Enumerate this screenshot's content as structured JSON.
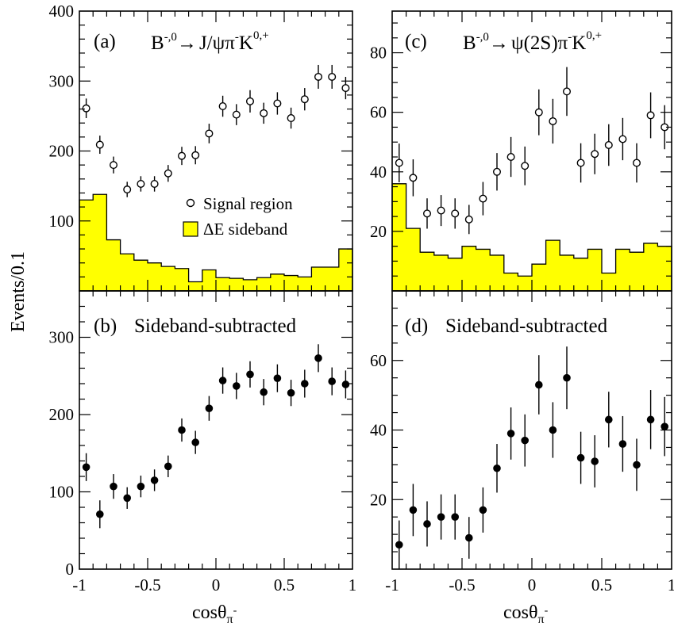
{
  "figure": {
    "ylabel": "Events/0.1",
    "xlabel_left": "cosθ",
    "xlabel_right": "cosθ",
    "xlabel_sub": "π",
    "xlabel_sup": "-"
  },
  "legend": {
    "signal_label": "Signal region",
    "sideband_label": "ΔE sideband"
  },
  "colors": {
    "sideband_fill": "#ffff00",
    "marker": "#000000"
  },
  "chart_data": [
    {
      "id": "a",
      "type": "scatter",
      "label_letter": "(a)",
      "title_parts": {
        "b": "B",
        "b_sup": "-,0",
        "arrow": "→",
        "decay": "J/ψπ",
        "pi_sup": "-",
        "k": "K",
        "k_sup": "0,+"
      },
      "xlim": [
        -1,
        1
      ],
      "ylim": [
        0,
        400
      ],
      "yticks": [
        100,
        200,
        300,
        400
      ],
      "yticklabels": [
        "100",
        "200",
        "300",
        "400"
      ],
      "xticks": [
        -1,
        -0.5,
        0,
        0.5,
        1
      ],
      "series": [
        {
          "name": "Signal region",
          "marker": "open-circle",
          "x": [
            -0.95,
            -0.85,
            -0.75,
            -0.65,
            -0.55,
            -0.45,
            -0.35,
            -0.25,
            -0.15,
            -0.05,
            0.05,
            0.15,
            0.25,
            0.35,
            0.45,
            0.55,
            0.65,
            0.75,
            0.85,
            0.95
          ],
          "y": [
            261,
            209,
            180,
            145,
            153,
            153,
            168,
            193,
            194,
            225,
            264,
            252,
            271,
            254,
            268,
            247,
            274,
            306,
            306,
            290
          ],
          "err": [
            14,
            13,
            12,
            11,
            11,
            11,
            12,
            13,
            13,
            14,
            15,
            15,
            16,
            15,
            16,
            15,
            16,
            17,
            17,
            16
          ]
        },
        {
          "name": "ΔE sideband",
          "type": "histogram",
          "bin_edges": [
            -1,
            -0.9,
            -0.8,
            -0.7,
            -0.6,
            -0.5,
            -0.4,
            -0.3,
            -0.2,
            -0.1,
            0,
            0.1,
            0.2,
            0.3,
            0.4,
            0.5,
            0.6,
            0.7,
            0.8,
            0.9,
            1
          ],
          "values": [
            130,
            138,
            73,
            53,
            44,
            40,
            35,
            32,
            13,
            30,
            19,
            18,
            16,
            19,
            24,
            22,
            20,
            34,
            34,
            60
          ]
        }
      ]
    },
    {
      "id": "b",
      "type": "scatter",
      "label_letter": "(b)",
      "title": "Sideband-subtracted",
      "xlim": [
        -1,
        1
      ],
      "ylim": [
        0,
        360
      ],
      "yticks": [
        0,
        100,
        200,
        300
      ],
      "yticklabels": [
        "0",
        "100",
        "200",
        "300"
      ],
      "xticks": [
        -1,
        -0.5,
        0,
        0.5,
        1
      ],
      "xticklabels": [
        "-1",
        "-0.5",
        "0",
        "0.5",
        "1"
      ],
      "series": [
        {
          "marker": "filled-circle",
          "x": [
            -0.95,
            -0.85,
            -0.75,
            -0.65,
            -0.55,
            -0.45,
            -0.35,
            -0.25,
            -0.15,
            -0.05,
            0.05,
            0.15,
            0.25,
            0.35,
            0.45,
            0.55,
            0.65,
            0.75,
            0.85,
            0.95
          ],
          "y": [
            132,
            71,
            107,
            92,
            107,
            115,
            133,
            180,
            164,
            208,
            244,
            237,
            252,
            229,
            247,
            228,
            240,
            273,
            243,
            239
          ],
          "err": [
            18,
            18,
            16,
            14,
            14,
            14,
            14,
            15,
            15,
            16,
            17,
            17,
            17,
            17,
            18,
            17,
            18,
            18,
            18,
            18
          ]
        }
      ]
    },
    {
      "id": "c",
      "type": "scatter",
      "label_letter": "(c)",
      "title_parts": {
        "b": "B",
        "b_sup": "-,0",
        "arrow": "→",
        "decay": "ψ(2S)π",
        "pi_sup": "-",
        "k": "K",
        "k_sup": "0,+"
      },
      "xlim": [
        -1,
        1
      ],
      "ylim": [
        0,
        94
      ],
      "yticks": [
        20,
        40,
        60,
        80
      ],
      "yticklabels": [
        "20",
        "40",
        "60",
        "80"
      ],
      "xticks": [
        -1,
        -0.5,
        0,
        0.5,
        1
      ],
      "series": [
        {
          "name": "Signal region",
          "marker": "open-circle",
          "x": [
            -0.95,
            -0.85,
            -0.75,
            -0.65,
            -0.55,
            -0.45,
            -0.35,
            -0.25,
            -0.15,
            -0.05,
            0.05,
            0.15,
            0.25,
            0.35,
            0.45,
            0.55,
            0.65,
            0.75,
            0.85,
            0.95
          ],
          "y": [
            43,
            38,
            26,
            27,
            26,
            24,
            31,
            40,
            45,
            42,
            60,
            57,
            67,
            43,
            46,
            49,
            51,
            43,
            59,
            55
          ],
          "err": [
            6.5,
            6.2,
            5.1,
            5.2,
            5.1,
            4.9,
            5.6,
            6.3,
            6.7,
            6.5,
            7.7,
            7.5,
            8.2,
            6.6,
            6.8,
            7.0,
            7.1,
            6.6,
            7.7,
            7.4
          ]
        },
        {
          "name": "ΔE sideband",
          "type": "histogram",
          "bin_edges": [
            -1,
            -0.9,
            -0.8,
            -0.7,
            -0.6,
            -0.5,
            -0.4,
            -0.3,
            -0.2,
            -0.1,
            0,
            0.1,
            0.2,
            0.3,
            0.4,
            0.5,
            0.6,
            0.7,
            0.8,
            0.9,
            1
          ],
          "values": [
            36,
            21,
            13,
            12,
            11,
            15,
            14,
            12,
            6,
            5,
            9,
            17,
            12,
            11,
            14,
            6,
            14,
            13,
            16,
            15
          ]
        }
      ]
    },
    {
      "id": "d",
      "type": "scatter",
      "label_letter": "(d)",
      "title": "Sideband-subtracted",
      "xlim": [
        -1,
        1
      ],
      "ylim": [
        0,
        80
      ],
      "yticks": [
        20,
        40,
        60
      ],
      "yticklabels": [
        "20",
        "40",
        "60"
      ],
      "xticks": [
        -1,
        -0.5,
        0,
        0.5,
        1
      ],
      "xticklabels": [
        "-1",
        "-0.5",
        "0",
        "0.5",
        "1"
      ],
      "series": [
        {
          "marker": "filled-circle",
          "x": [
            -0.95,
            -0.85,
            -0.75,
            -0.65,
            -0.55,
            -0.45,
            -0.35,
            -0.25,
            -0.15,
            -0.05,
            0.05,
            0.15,
            0.25,
            0.35,
            0.45,
            0.55,
            0.65,
            0.75,
            0.85,
            0.95
          ],
          "y": [
            7,
            17,
            13,
            15,
            15,
            9,
            17,
            29,
            39,
            37,
            53,
            40,
            55,
            32,
            31,
            43,
            36,
            30,
            43,
            41
          ],
          "err": [
            7,
            7.5,
            6.5,
            6.5,
            6.5,
            6,
            6.5,
            7,
            7.5,
            7.5,
            8.5,
            8,
            9,
            7.5,
            7.5,
            8,
            8,
            7.5,
            8.5,
            8.5
          ]
        }
      ]
    }
  ]
}
